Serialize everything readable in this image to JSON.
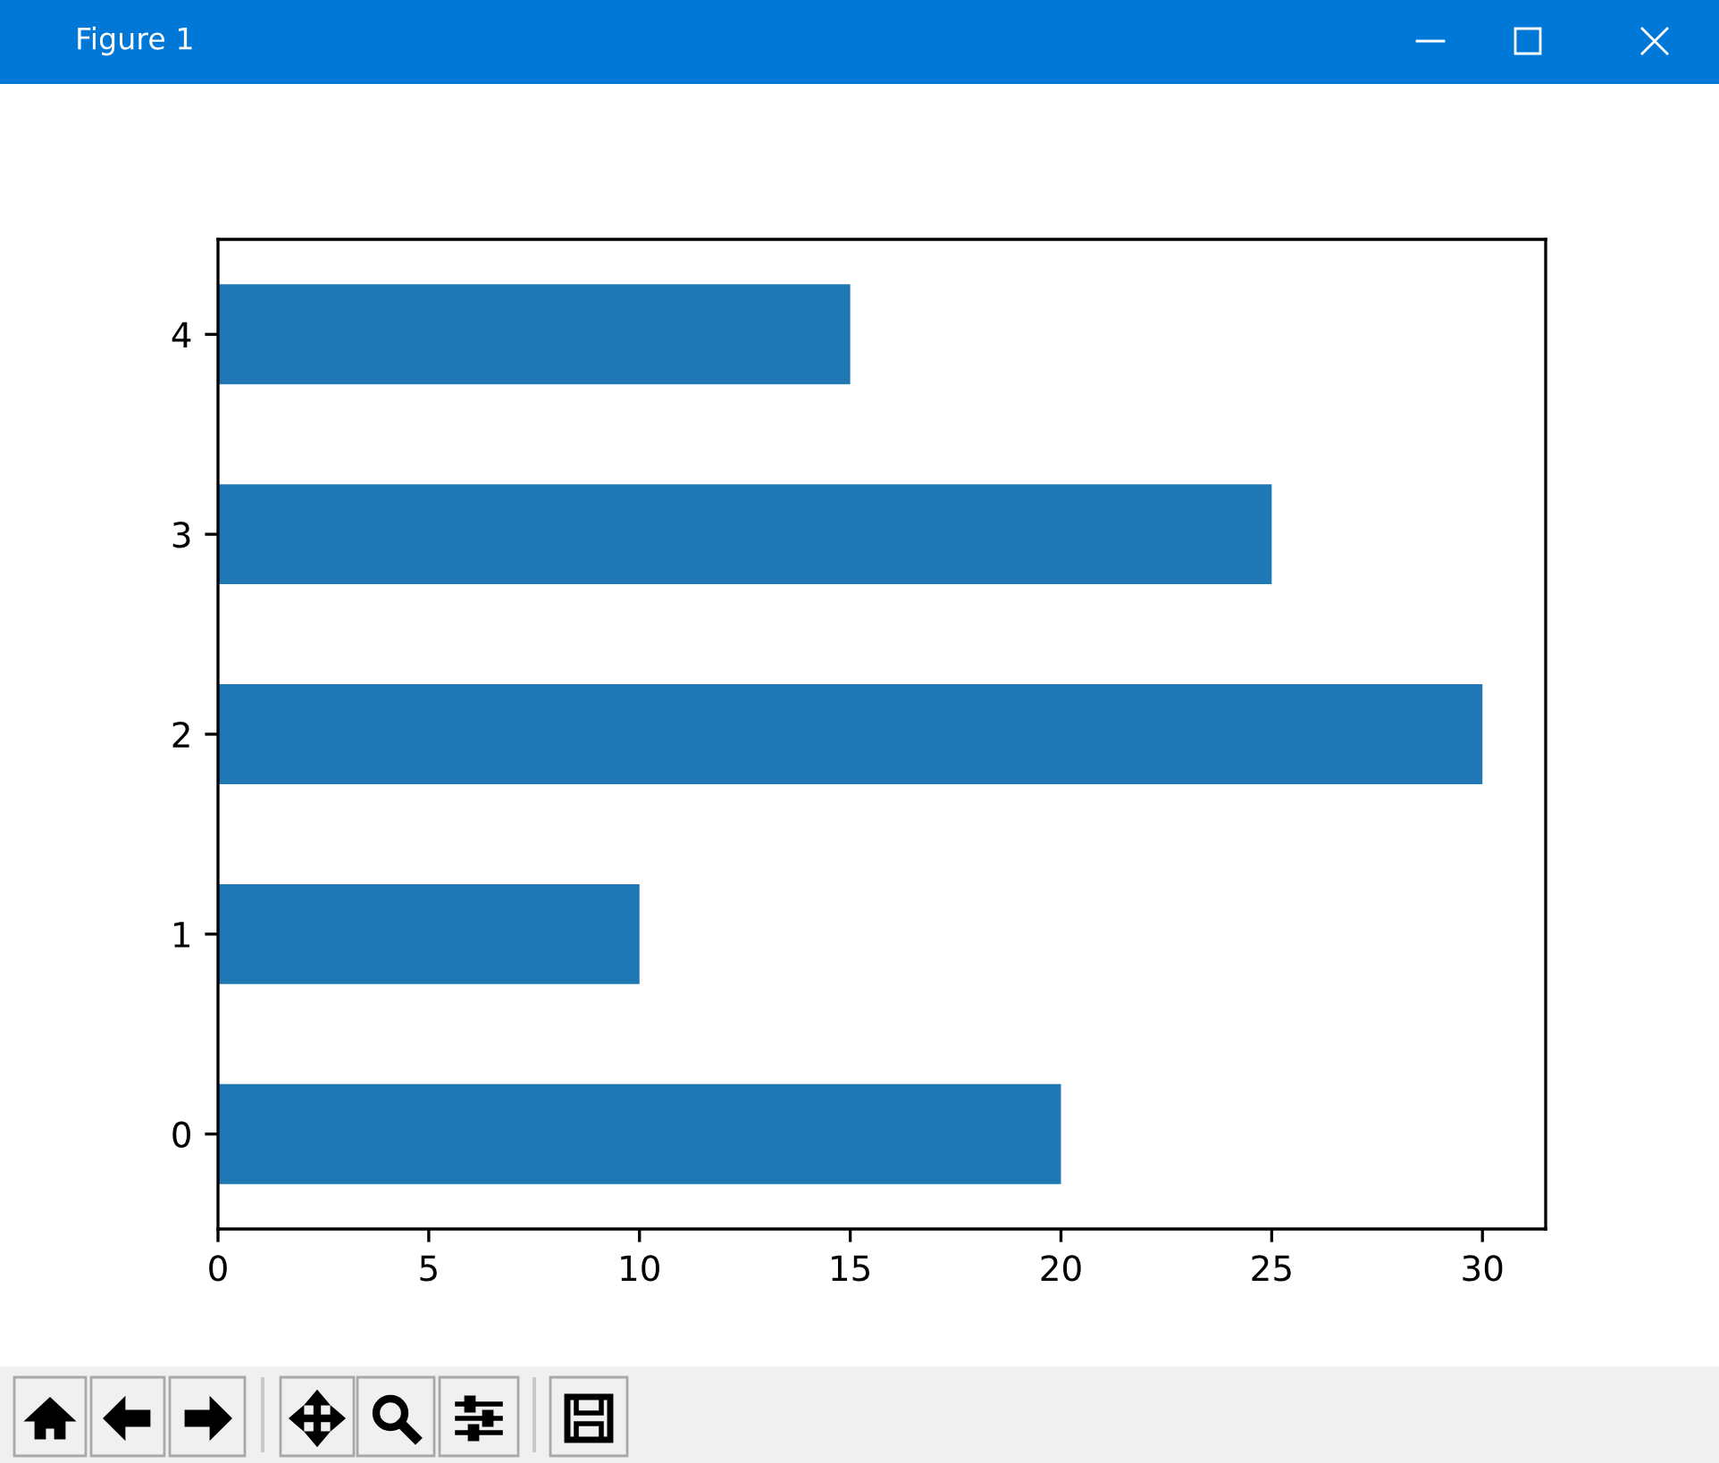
{
  "chart_data": {
    "type": "bar",
    "title": "Figure 1",
    "orientation": "horizontal",
    "categories": [
      "4",
      "3",
      "2",
      "1",
      "0"
    ],
    "values": [
      15,
      25,
      30,
      10,
      20
    ],
    "color": "#1f77b4",
    "xlim": [
      0,
      31.5
    ],
    "xticks": [
      0,
      5,
      10,
      15,
      20,
      25,
      30
    ]
  }
}
